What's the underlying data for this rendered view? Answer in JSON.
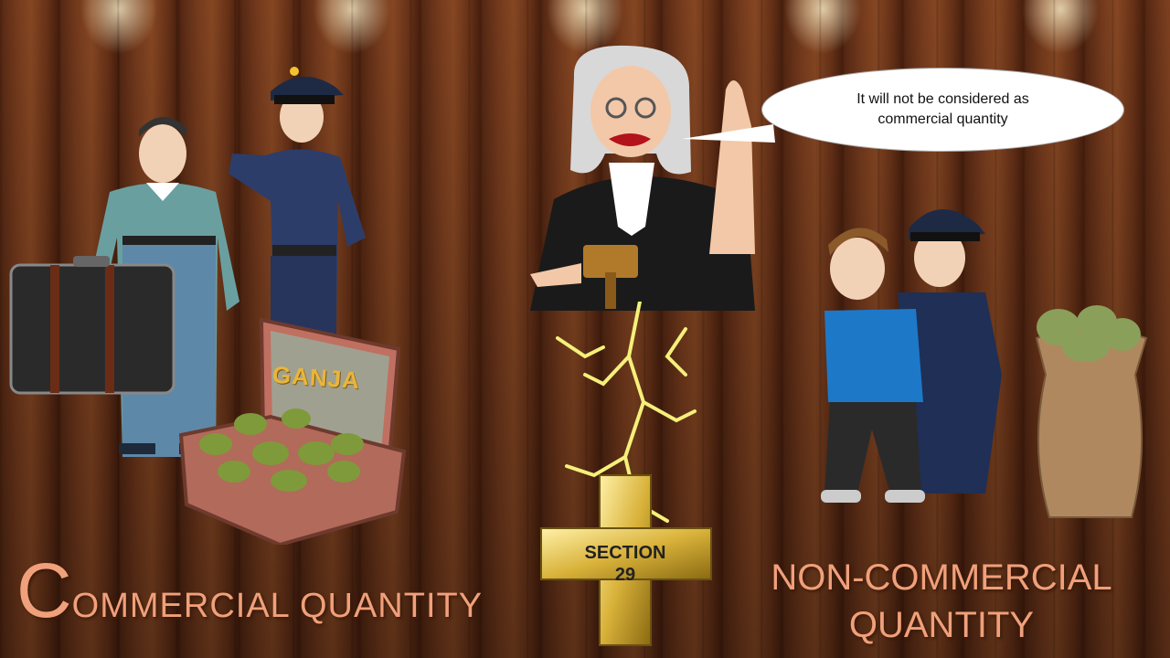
{
  "speech_bubble": {
    "line1": "It will not be considered  as",
    "line2": "commercial quantity"
  },
  "case_label": "GANJA",
  "cross": {
    "line1": "SECTION",
    "line2": "29"
  },
  "left_title": {
    "first_letter": "C",
    "rest": "OMMERCIAL  QUANTITY"
  },
  "right_title": {
    "line1": "NON-COMMERCIAL",
    "line2": "QUANTITY"
  },
  "colors": {
    "title": "#f0a07a",
    "wood": "#6b3318",
    "gold": "#d9b23a",
    "lightning": "#f4f07a"
  }
}
